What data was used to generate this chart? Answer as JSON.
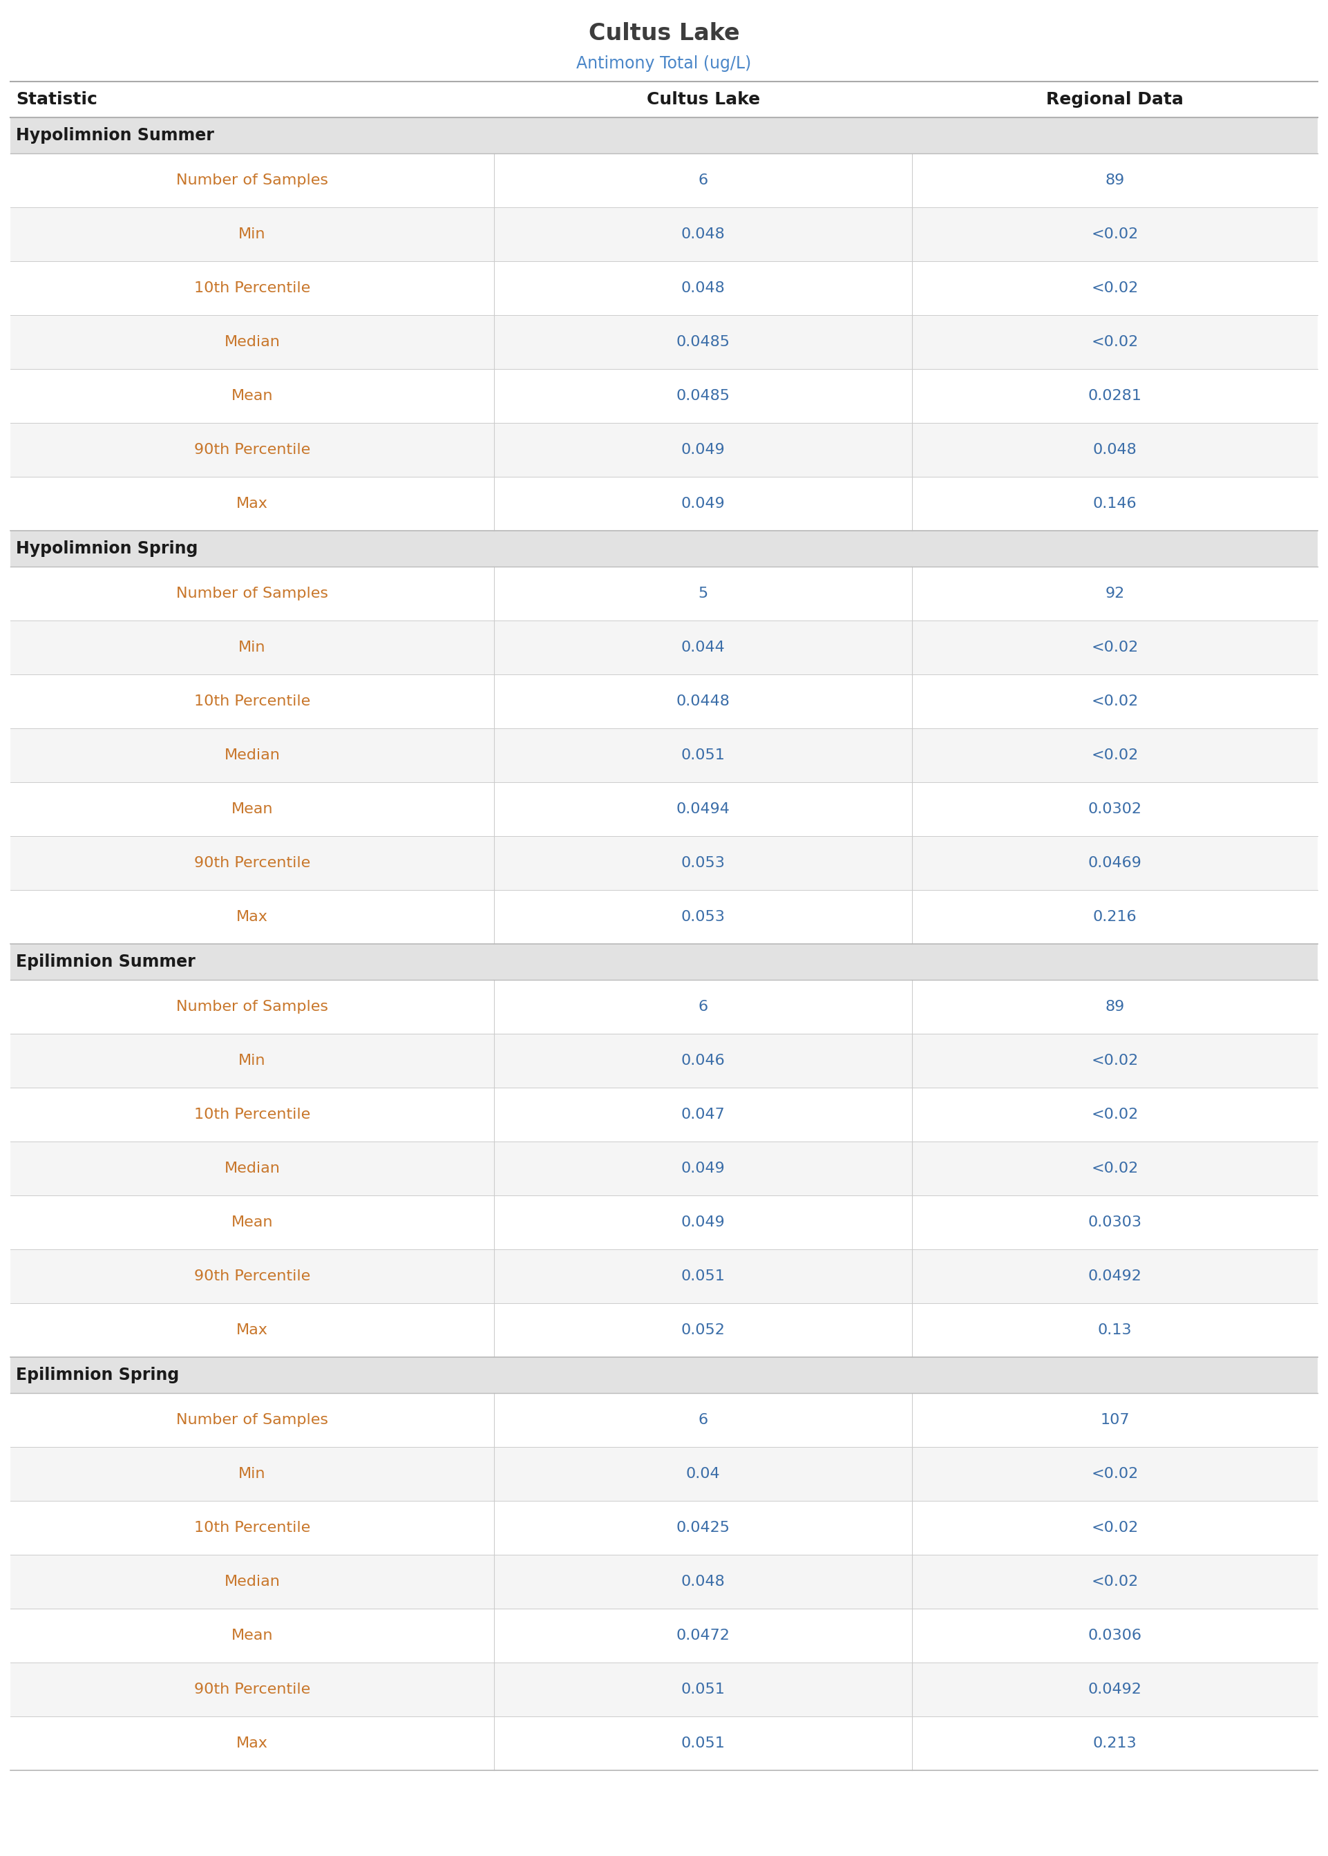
{
  "title": "Cultus Lake",
  "subtitle": "Antimony Total (ug/L)",
  "title_color": "#3d3d3d",
  "subtitle_color": "#4a86c8",
  "col_headers": [
    "Statistic",
    "Cultus Lake",
    "Regional Data"
  ],
  "col_header_color": "#1a1a1a",
  "sections": [
    {
      "name": "Hypolimnion Summer",
      "rows": [
        [
          "Number of Samples",
          "6",
          "89"
        ],
        [
          "Min",
          "0.048",
          "<0.02"
        ],
        [
          "10th Percentile",
          "0.048",
          "<0.02"
        ],
        [
          "Median",
          "0.0485",
          "<0.02"
        ],
        [
          "Mean",
          "0.0485",
          "0.0281"
        ],
        [
          "90th Percentile",
          "0.049",
          "0.048"
        ],
        [
          "Max",
          "0.049",
          "0.146"
        ]
      ]
    },
    {
      "name": "Hypolimnion Spring",
      "rows": [
        [
          "Number of Samples",
          "5",
          "92"
        ],
        [
          "Min",
          "0.044",
          "<0.02"
        ],
        [
          "10th Percentile",
          "0.0448",
          "<0.02"
        ],
        [
          "Median",
          "0.051",
          "<0.02"
        ],
        [
          "Mean",
          "0.0494",
          "0.0302"
        ],
        [
          "90th Percentile",
          "0.053",
          "0.0469"
        ],
        [
          "Max",
          "0.053",
          "0.216"
        ]
      ]
    },
    {
      "name": "Epilimnion Summer",
      "rows": [
        [
          "Number of Samples",
          "6",
          "89"
        ],
        [
          "Min",
          "0.046",
          "<0.02"
        ],
        [
          "10th Percentile",
          "0.047",
          "<0.02"
        ],
        [
          "Median",
          "0.049",
          "<0.02"
        ],
        [
          "Mean",
          "0.049",
          "0.0303"
        ],
        [
          "90th Percentile",
          "0.051",
          "0.0492"
        ],
        [
          "Max",
          "0.052",
          "0.13"
        ]
      ]
    },
    {
      "name": "Epilimnion Spring",
      "rows": [
        [
          "Number of Samples",
          "6",
          "107"
        ],
        [
          "Min",
          "0.04",
          "<0.02"
        ],
        [
          "10th Percentile",
          "0.0425",
          "<0.02"
        ],
        [
          "Median",
          "0.048",
          "<0.02"
        ],
        [
          "Mean",
          "0.0472",
          "0.0306"
        ],
        [
          "90th Percentile",
          "0.051",
          "0.0492"
        ],
        [
          "Max",
          "0.051",
          "0.213"
        ]
      ]
    }
  ],
  "section_header_bg": "#e2e2e2",
  "section_header_text_color": "#1a1a1a",
  "row_bg_white": "#ffffff",
  "row_bg_light": "#f5f5f5",
  "stat_label_color": "#c8762a",
  "value_color": "#3a6da8",
  "header_top_line_color": "#aaaaaa",
  "header_bottom_line_color": "#888888",
  "row_line_color": "#cccccc",
  "section_line_color": "#bbbbbb",
  "background_color": "#ffffff",
  "title_fontsize": 24,
  "subtitle_fontsize": 17,
  "header_fontsize": 18,
  "section_fontsize": 17,
  "row_fontsize": 16,
  "col_split1": 0.37,
  "col_split2": 0.69
}
